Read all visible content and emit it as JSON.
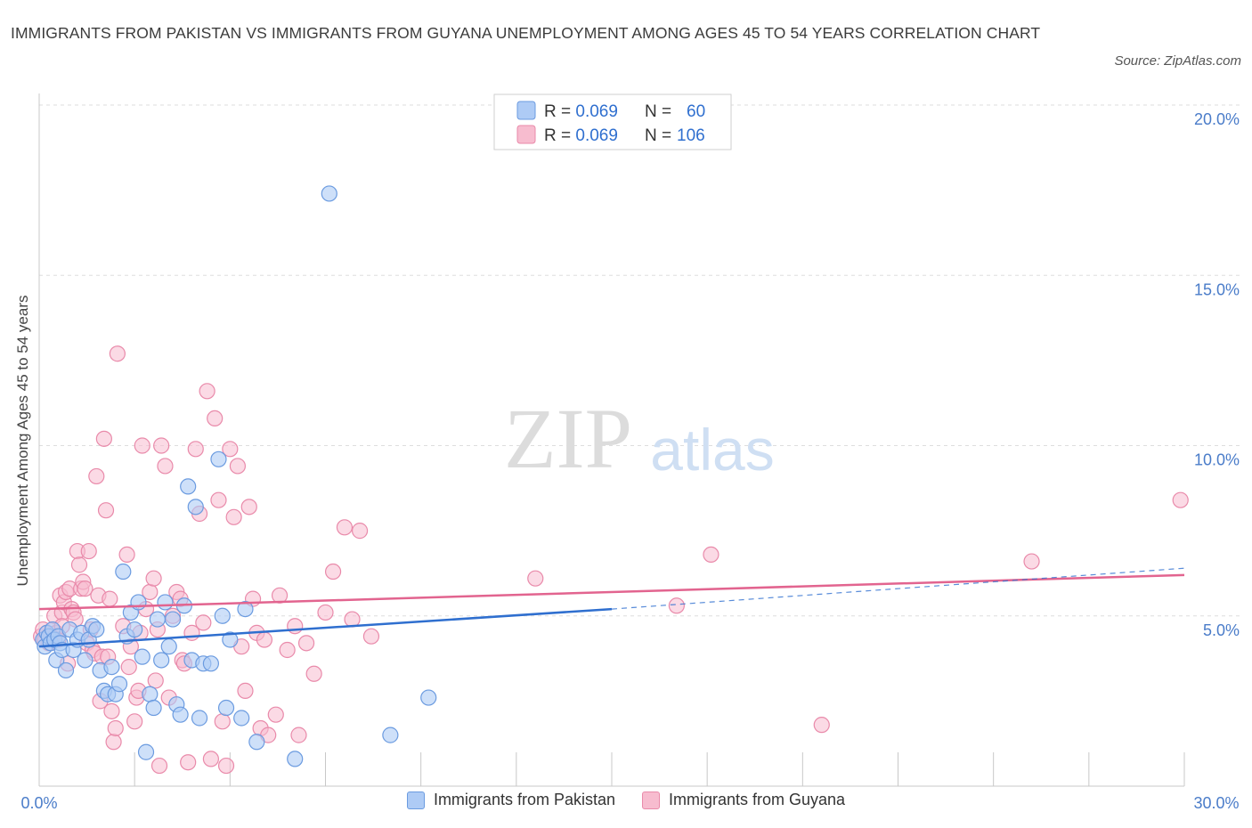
{
  "title": "IMMIGRANTS FROM PAKISTAN VS IMMIGRANTS FROM GUYANA UNEMPLOYMENT AMONG AGES 45 TO 54 YEARS CORRELATION CHART",
  "source": "Source: ZipAtlas.com",
  "watermark": {
    "zip": "ZIP",
    "atlas": "atlas"
  },
  "legend": {
    "rows": [
      {
        "r_label": "R = ",
        "r_value": "0.069",
        "n_label": "N = ",
        "n_value": "60"
      },
      {
        "r_label": "R = ",
        "r_value": "0.069",
        "n_label": "N = ",
        "n_value": "106"
      }
    ]
  },
  "bottom_legend": {
    "pakistan": "Immigrants from Pakistan",
    "guyana": "Immigrants from Guyana"
  },
  "colors": {
    "pakistan_fill": "#aecbf5",
    "pakistan_stroke": "#6b9be0",
    "pakistan_line": "#2f6fcf",
    "guyana_fill": "#f7bccf",
    "guyana_stroke": "#e98aaa",
    "guyana_line": "#e2648f",
    "tick_text": "#4a7cc9"
  },
  "chart_data": {
    "type": "scatter",
    "title": "IMMIGRANTS FROM PAKISTAN VS IMMIGRANTS FROM GUYANA UNEMPLOYMENT AMONG AGES 45 TO 54 YEARS CORRELATION CHART",
    "xlabel": "",
    "ylabel": "Unemployment Among Ages 45 to 54 years",
    "xlim": [
      0,
      30
    ],
    "ylim": [
      0,
      20
    ],
    "x_tick_labels": [
      "0.0%",
      "30.0%"
    ],
    "y_ticks": [
      5,
      10,
      15,
      20
    ],
    "y_tick_labels": [
      "5.0%",
      "10.0%",
      "15.0%",
      "20.0%"
    ],
    "grid": true,
    "series": [
      {
        "name": "Immigrants from Pakistan",
        "R": 0.069,
        "N": 60,
        "trend": {
          "x0": 0,
          "y0": 4.1,
          "x1": 15,
          "y1": 5.2,
          "dash_to_x": 30,
          "dash_to_y": 6.4
        },
        "points": [
          [
            0.1,
            4.3
          ],
          [
            0.15,
            4.1
          ],
          [
            0.2,
            4.5
          ],
          [
            0.25,
            4.4
          ],
          [
            0.3,
            4.2
          ],
          [
            0.35,
            4.6
          ],
          [
            0.4,
            4.3
          ],
          [
            0.45,
            3.7
          ],
          [
            0.5,
            4.4
          ],
          [
            0.55,
            4.2
          ],
          [
            0.6,
            4.0
          ],
          [
            0.7,
            3.4
          ],
          [
            0.8,
            4.6
          ],
          [
            0.9,
            4.0
          ],
          [
            1.0,
            4.3
          ],
          [
            1.1,
            4.5
          ],
          [
            1.2,
            3.7
          ],
          [
            1.3,
            4.3
          ],
          [
            1.4,
            4.7
          ],
          [
            1.5,
            4.6
          ],
          [
            1.6,
            3.4
          ],
          [
            1.7,
            2.8
          ],
          [
            1.8,
            2.7
          ],
          [
            1.9,
            3.5
          ],
          [
            2.0,
            2.7
          ],
          [
            2.1,
            3.0
          ],
          [
            2.2,
            6.3
          ],
          [
            2.3,
            4.4
          ],
          [
            2.4,
            5.1
          ],
          [
            2.5,
            4.6
          ],
          [
            2.6,
            5.4
          ],
          [
            2.7,
            3.8
          ],
          [
            2.8,
            1.0
          ],
          [
            2.9,
            2.7
          ],
          [
            3.0,
            2.3
          ],
          [
            3.1,
            4.9
          ],
          [
            3.2,
            3.7
          ],
          [
            3.3,
            5.4
          ],
          [
            3.4,
            4.1
          ],
          [
            3.5,
            4.9
          ],
          [
            3.6,
            2.4
          ],
          [
            3.7,
            2.1
          ],
          [
            3.8,
            5.3
          ],
          [
            3.9,
            8.8
          ],
          [
            4.0,
            3.7
          ],
          [
            4.1,
            8.2
          ],
          [
            4.2,
            2.0
          ],
          [
            4.3,
            3.6
          ],
          [
            4.5,
            3.6
          ],
          [
            4.7,
            9.6
          ],
          [
            4.8,
            5.0
          ],
          [
            4.9,
            2.3
          ],
          [
            5.0,
            4.3
          ],
          [
            5.4,
            5.2
          ],
          [
            5.3,
            2.0
          ],
          [
            5.7,
            1.3
          ],
          [
            6.7,
            0.8
          ],
          [
            7.6,
            17.4
          ],
          [
            9.2,
            1.5
          ],
          [
            10.2,
            2.6
          ]
        ]
      },
      {
        "name": "Immigrants from Guyana",
        "R": 0.069,
        "N": 106,
        "trend": {
          "x0": 0,
          "y0": 5.2,
          "x1": 30,
          "y1": 6.2
        },
        "points": [
          [
            0.05,
            4.4
          ],
          [
            0.1,
            4.6
          ],
          [
            0.15,
            4.3
          ],
          [
            0.2,
            4.5
          ],
          [
            0.25,
            4.2
          ],
          [
            0.3,
            4.4
          ],
          [
            0.35,
            4.6
          ],
          [
            0.4,
            5.0
          ],
          [
            0.45,
            4.5
          ],
          [
            0.5,
            4.3
          ],
          [
            0.55,
            5.6
          ],
          [
            0.6,
            5.1
          ],
          [
            0.65,
            5.4
          ],
          [
            0.7,
            5.7
          ],
          [
            0.75,
            3.6
          ],
          [
            0.8,
            5.8
          ],
          [
            0.85,
            5.2
          ],
          [
            0.9,
            5.1
          ],
          [
            0.95,
            4.9
          ],
          [
            1.0,
            6.9
          ],
          [
            1.05,
            6.5
          ],
          [
            1.1,
            5.8
          ],
          [
            1.15,
            6.0
          ],
          [
            1.2,
            5.8
          ],
          [
            1.25,
            4.2
          ],
          [
            1.3,
            6.9
          ],
          [
            1.35,
            4.6
          ],
          [
            1.4,
            4.0
          ],
          [
            1.45,
            3.9
          ],
          [
            1.5,
            9.1
          ],
          [
            1.55,
            5.6
          ],
          [
            1.6,
            2.5
          ],
          [
            1.65,
            3.8
          ],
          [
            1.7,
            10.2
          ],
          [
            1.75,
            8.1
          ],
          [
            1.8,
            3.8
          ],
          [
            1.85,
            5.5
          ],
          [
            1.9,
            2.2
          ],
          [
            1.95,
            1.3
          ],
          [
            2.0,
            1.7
          ],
          [
            2.05,
            12.7
          ],
          [
            2.2,
            4.7
          ],
          [
            2.3,
            6.8
          ],
          [
            2.35,
            3.5
          ],
          [
            2.4,
            4.1
          ],
          [
            2.5,
            1.9
          ],
          [
            2.55,
            2.6
          ],
          [
            2.6,
            2.8
          ],
          [
            2.65,
            4.5
          ],
          [
            2.7,
            10.0
          ],
          [
            2.8,
            5.2
          ],
          [
            2.9,
            5.7
          ],
          [
            3.0,
            6.1
          ],
          [
            3.05,
            3.1
          ],
          [
            3.1,
            4.6
          ],
          [
            3.15,
            0.6
          ],
          [
            3.2,
            10.0
          ],
          [
            3.3,
            9.4
          ],
          [
            3.4,
            2.6
          ],
          [
            3.5,
            5.0
          ],
          [
            3.6,
            5.7
          ],
          [
            3.7,
            5.5
          ],
          [
            3.75,
            3.7
          ],
          [
            3.8,
            3.6
          ],
          [
            3.9,
            0.7
          ],
          [
            4.0,
            4.5
          ],
          [
            4.1,
            9.9
          ],
          [
            4.2,
            8.0
          ],
          [
            4.3,
            4.8
          ],
          [
            4.4,
            11.6
          ],
          [
            4.5,
            0.8
          ],
          [
            4.6,
            10.8
          ],
          [
            4.7,
            8.4
          ],
          [
            4.8,
            1.9
          ],
          [
            4.9,
            0.6
          ],
          [
            5.0,
            9.9
          ],
          [
            5.1,
            7.9
          ],
          [
            5.2,
            9.4
          ],
          [
            5.3,
            4.1
          ],
          [
            5.4,
            2.8
          ],
          [
            5.5,
            8.2
          ],
          [
            5.6,
            5.5
          ],
          [
            5.7,
            4.5
          ],
          [
            5.8,
            1.7
          ],
          [
            5.9,
            4.3
          ],
          [
            6.0,
            1.5
          ],
          [
            6.2,
            2.1
          ],
          [
            6.3,
            5.6
          ],
          [
            6.5,
            4.0
          ],
          [
            6.7,
            4.7
          ],
          [
            6.8,
            1.5
          ],
          [
            7.0,
            4.2
          ],
          [
            7.2,
            3.3
          ],
          [
            7.5,
            5.1
          ],
          [
            7.7,
            6.3
          ],
          [
            8.0,
            7.6
          ],
          [
            8.2,
            4.9
          ],
          [
            8.4,
            7.5
          ],
          [
            8.7,
            4.4
          ],
          [
            13.0,
            6.1
          ],
          [
            16.7,
            5.3
          ],
          [
            17.6,
            6.8
          ],
          [
            20.5,
            1.8
          ],
          [
            26.0,
            6.6
          ],
          [
            29.9,
            8.4
          ],
          [
            0.6,
            4.7
          ]
        ]
      }
    ]
  }
}
